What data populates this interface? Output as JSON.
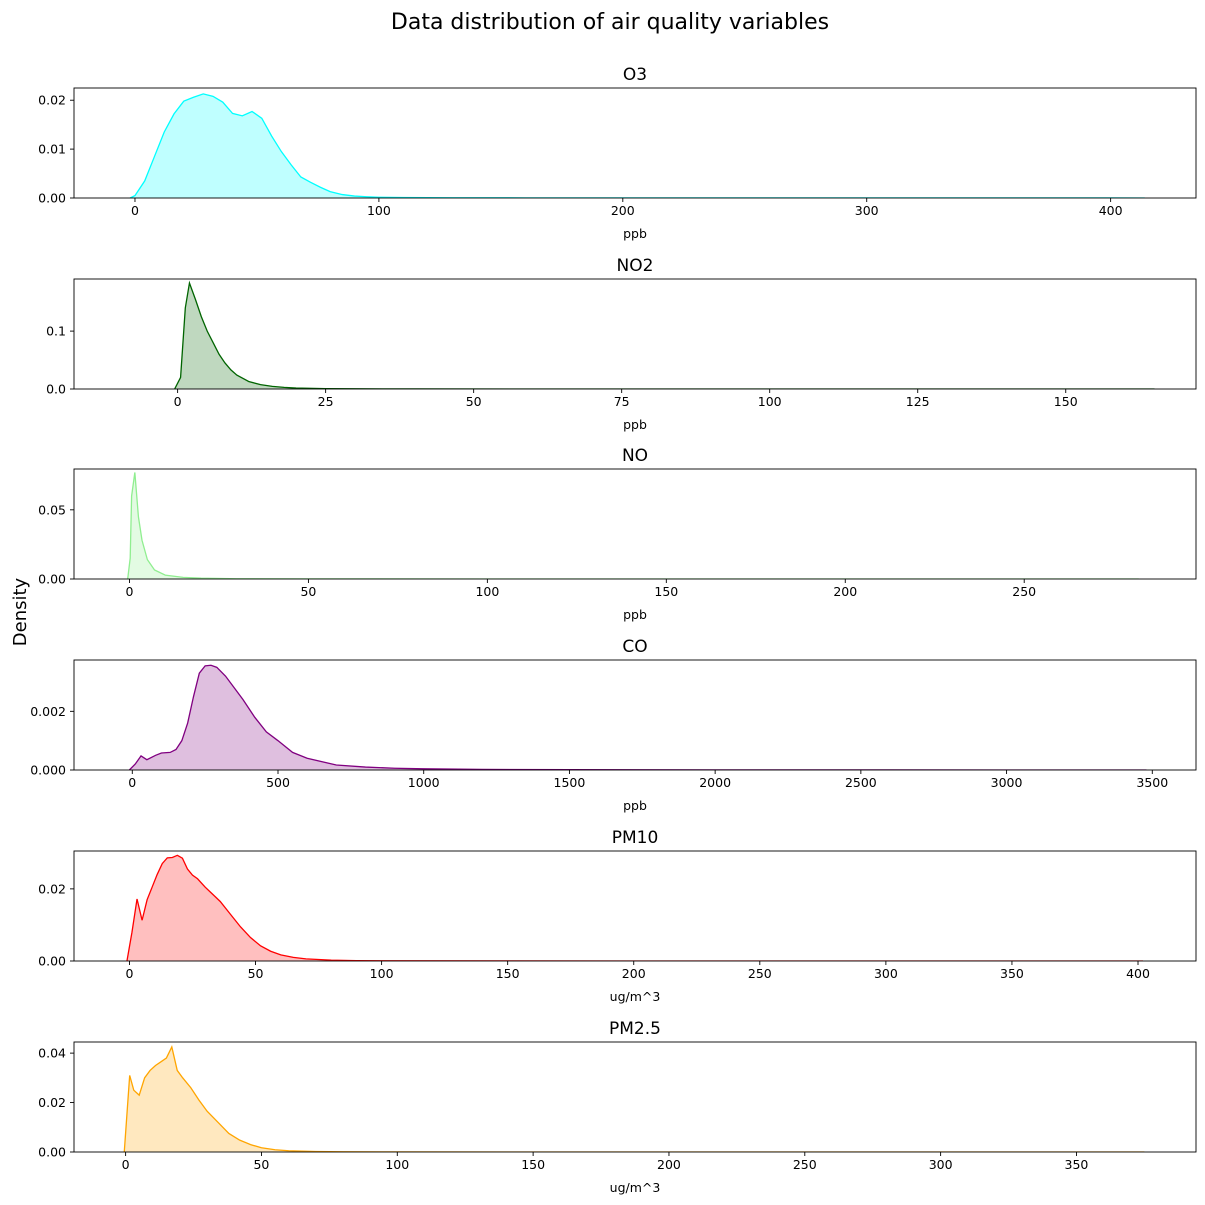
{
  "figure": {
    "title": "Data distribution of air quality variables",
    "ylabel": "Density"
  },
  "chart_data": [
    {
      "type": "area",
      "title": "O3",
      "xlabel": "ppb",
      "ylabel": "",
      "color": "#00ffff",
      "xlim": [
        -25,
        435
      ],
      "ylim": [
        0,
        0.0225
      ],
      "xticks": [
        0,
        100,
        200,
        300,
        400
      ],
      "yticks": [
        0.0,
        0.01,
        0.02
      ],
      "ytick_decimals": 2,
      "x": [
        -2,
        0,
        4,
        8,
        12,
        16,
        20,
        24,
        28,
        32,
        36,
        40,
        44,
        48,
        52,
        56,
        60,
        64,
        68,
        72,
        76,
        80,
        85,
        90,
        95,
        100,
        110,
        130,
        160,
        200,
        250,
        300,
        350,
        400,
        414
      ],
      "y": [
        0,
        0.0005,
        0.0035,
        0.0085,
        0.0135,
        0.0172,
        0.0198,
        0.0206,
        0.0213,
        0.0208,
        0.0196,
        0.0173,
        0.0168,
        0.0177,
        0.0163,
        0.0127,
        0.0095,
        0.0068,
        0.0043,
        0.0032,
        0.0022,
        0.0013,
        0.0007,
        0.0004,
        0.00025,
        0.00015,
        0.0001,
        5e-05,
        3e-05,
        2e-05,
        1e-05,
        1e-05,
        1e-05,
        1e-05,
        0
      ]
    },
    {
      "type": "area",
      "title": "NO2",
      "xlabel": "ppb",
      "ylabel": "",
      "color": "#006400",
      "xlim": [
        -17.5,
        172
      ],
      "ylim": [
        0,
        0.19
      ],
      "xticks": [
        0,
        25,
        50,
        75,
        100,
        125,
        150
      ],
      "yticks": [
        0.0,
        0.1
      ],
      "ytick_decimals": 1,
      "x": [
        -0.5,
        0.5,
        1.3,
        2,
        3,
        4,
        5,
        6,
        7,
        8,
        9,
        10,
        12,
        14,
        16,
        18,
        20,
        25,
        30,
        40,
        60,
        100,
        165
      ],
      "y": [
        0,
        0.02,
        0.14,
        0.183,
        0.155,
        0.125,
        0.1,
        0.08,
        0.06,
        0.045,
        0.033,
        0.024,
        0.013,
        0.0075,
        0.0045,
        0.0028,
        0.0016,
        0.0006,
        0.0003,
        0.0001,
        3e-05,
        1e-05,
        0
      ]
    },
    {
      "type": "area",
      "title": "NO",
      "xlabel": "ppb",
      "ylabel": "",
      "color": "#90ee90",
      "xlim": [
        -15.5,
        298
      ],
      "ylim": [
        0,
        0.0795
      ],
      "xticks": [
        0,
        50,
        100,
        150,
        200,
        250
      ],
      "yticks": [
        0.0,
        0.05
      ],
      "ytick_decimals": 2,
      "x": [
        -0.5,
        0.2,
        0.6,
        1.5,
        2.5,
        3.5,
        5,
        7,
        10,
        15,
        20,
        30,
        50,
        100,
        200,
        282
      ],
      "y": [
        0,
        0.015,
        0.06,
        0.077,
        0.045,
        0.028,
        0.014,
        0.0065,
        0.0028,
        0.0012,
        0.0006,
        0.0002,
        5e-05,
        1e-05,
        0,
        0
      ]
    },
    {
      "type": "area",
      "title": "CO",
      "xlabel": "ppb",
      "ylabel": "",
      "color": "#800080",
      "xlim": [
        -200,
        3650
      ],
      "ylim": [
        0,
        0.00375
      ],
      "xticks": [
        0,
        500,
        1000,
        1500,
        2000,
        2500,
        3000,
        3500
      ],
      "yticks": [
        0.0,
        0.002
      ],
      "ytick_decimals": 3,
      "x": [
        -10,
        10,
        30,
        50,
        80,
        100,
        130,
        150,
        170,
        190,
        210,
        230,
        250,
        270,
        290,
        320,
        350,
        380,
        420,
        460,
        500,
        550,
        600,
        700,
        800,
        900,
        1000,
        1200,
        1500,
        2000,
        2500,
        3000,
        3480
      ],
      "y": [
        0,
        0.0002,
        0.00048,
        0.00035,
        0.0005,
        0.00058,
        0.0006,
        0.0007,
        0.001,
        0.0016,
        0.0025,
        0.0033,
        0.00355,
        0.00357,
        0.0035,
        0.0032,
        0.0028,
        0.0024,
        0.0018,
        0.0013,
        0.001,
        0.0006,
        0.0004,
        0.00017,
        0.0001,
        6e-05,
        4e-05,
        2e-05,
        1e-05,
        5e-06,
        2e-06,
        1e-06,
        0
      ]
    },
    {
      "type": "area",
      "title": "PM10",
      "xlabel": "ug/m^3",
      "ylabel": "",
      "color": "#ff0000",
      "xlim": [
        -22,
        423
      ],
      "ylim": [
        0,
        0.0305
      ],
      "xticks": [
        0,
        50,
        100,
        150,
        200,
        250,
        300,
        350,
        400
      ],
      "yticks": [
        0.0,
        0.02
      ],
      "ytick_decimals": 2,
      "x": [
        -1,
        1,
        3,
        5,
        7,
        9,
        11,
        13,
        15,
        17,
        19,
        21,
        23,
        25,
        27,
        30,
        33,
        36,
        40,
        44,
        48,
        52,
        56,
        60,
        65,
        70,
        80,
        90,
        100,
        150,
        200,
        300,
        402
      ],
      "y": [
        0,
        0.008,
        0.0172,
        0.0113,
        0.017,
        0.0205,
        0.024,
        0.027,
        0.0286,
        0.0287,
        0.0293,
        0.0285,
        0.0255,
        0.0238,
        0.0228,
        0.0205,
        0.0185,
        0.0165,
        0.013,
        0.0095,
        0.0065,
        0.0042,
        0.0027,
        0.0017,
        0.001,
        0.0006,
        0.00025,
        0.0001,
        5e-05,
        1e-05,
        5e-06,
        2e-06,
        0
      ]
    },
    {
      "type": "area",
      "title": "PM2.5",
      "xlabel": "ug/m^3",
      "ylabel": "",
      "color": "#ffa500",
      "xlim": [
        -19,
        394
      ],
      "ylim": [
        0,
        0.0445
      ],
      "xticks": [
        0,
        50,
        100,
        150,
        200,
        250,
        300,
        350
      ],
      "yticks": [
        0.0,
        0.02,
        0.04
      ],
      "ytick_decimals": 2,
      "x": [
        -0.5,
        1.5,
        3,
        5,
        7,
        9,
        11,
        13,
        15,
        17,
        19,
        21,
        24,
        27,
        30,
        34,
        38,
        42,
        46,
        50,
        55,
        60,
        70,
        80,
        100,
        150,
        200,
        300,
        375
      ],
      "y": [
        0,
        0.031,
        0.025,
        0.023,
        0.03,
        0.033,
        0.035,
        0.0365,
        0.038,
        0.0425,
        0.033,
        0.03,
        0.026,
        0.021,
        0.0165,
        0.012,
        0.0075,
        0.0048,
        0.003,
        0.0017,
        0.0009,
        0.0005,
        0.0002,
        0.0001,
        3e-05,
        1e-05,
        5e-06,
        2e-06,
        0
      ]
    }
  ]
}
